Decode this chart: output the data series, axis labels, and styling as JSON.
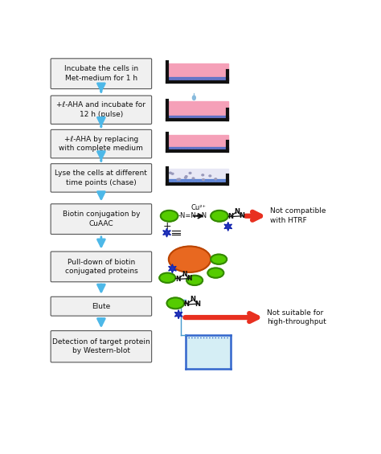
{
  "bg_color": "#ffffff",
  "box_color": "#f0f0f0",
  "box_edge_color": "#555555",
  "arrow_color": "#4db8e8",
  "red_arrow_color": "#e83020",
  "text_color": "#111111",
  "steps": [
    "Incubate the cells in\nMet-medium for 1 h",
    "+ℓ-AHA and incubate for\n12 h (pulse)",
    "+ℓ-AHA by replacing\nwith complete medium",
    "Lyse the cells at different\ntime points (chase)",
    "Biotin conjugation by\nCuAAC",
    "Pull-down of biotin\nconjugated proteins",
    "Elute",
    "Detection of target protein\nby Western-blot"
  ],
  "dish_pink": "#f5a0b8",
  "dish_light": "#e8e8f5",
  "dish_rim_dark": "#111111",
  "dish_rim_blue": "#3366cc",
  "dish_dots": "#9999bb",
  "drop_color": "#88bbdd",
  "green_color": "#55cc00",
  "green_edge": "#338800",
  "orange_color": "#e86820",
  "orange_edge": "#bb4400",
  "blue_star_color": "#2233bb",
  "black_line": "#111111",
  "note1_text": "Not compatible\nwith HTRF",
  "note2_text": "Not suitable for\nhigh-throughput",
  "bracket_color": "#4499cc"
}
